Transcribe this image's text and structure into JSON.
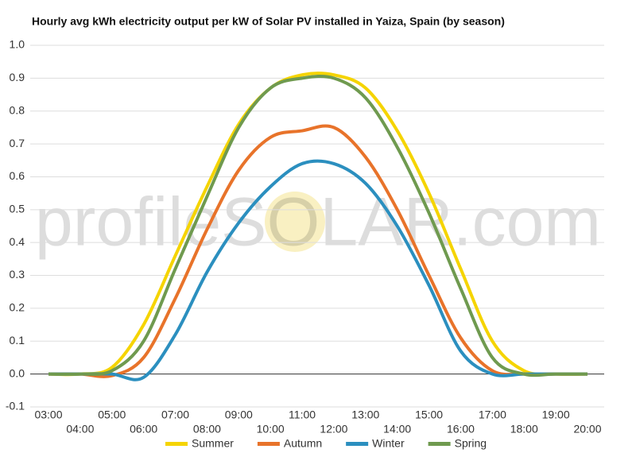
{
  "chart_data": {
    "type": "line",
    "title": "Hourly avg kWh electricity output per kW of Solar PV installed in Yaiza, Spain (by season)",
    "watermark": "profileSOLAR.com",
    "categories": [
      "03:00",
      "04:00",
      "05:00",
      "06:00",
      "07:00",
      "08:00",
      "09:00",
      "10:00",
      "11:00",
      "12:00",
      "13:00",
      "14:00",
      "15:00",
      "16:00",
      "17:00",
      "18:00",
      "19:00",
      "20:00"
    ],
    "series": [
      {
        "name": "Summer",
        "color": "#f5d400",
        "values": [
          0,
          0,
          0.02,
          0.15,
          0.36,
          0.57,
          0.76,
          0.87,
          0.91,
          0.91,
          0.87,
          0.74,
          0.55,
          0.32,
          0.1,
          0.01,
          0,
          0
        ]
      },
      {
        "name": "Autumn",
        "color": "#e8732a",
        "values": [
          0,
          0,
          -0.005,
          0.05,
          0.23,
          0.44,
          0.62,
          0.72,
          0.74,
          0.75,
          0.66,
          0.5,
          0.3,
          0.11,
          0.01,
          0,
          0,
          0
        ]
      },
      {
        "name": "Winter",
        "color": "#2b8fbf",
        "values": [
          0,
          0,
          0,
          -0.01,
          0.12,
          0.31,
          0.46,
          0.57,
          0.64,
          0.64,
          0.58,
          0.45,
          0.27,
          0.07,
          0,
          0,
          0,
          0
        ]
      },
      {
        "name": "Spring",
        "color": "#6f9a4f",
        "values": [
          0,
          0,
          0.01,
          0.1,
          0.32,
          0.54,
          0.75,
          0.87,
          0.9,
          0.9,
          0.84,
          0.69,
          0.49,
          0.26,
          0.05,
          0,
          0,
          0
        ]
      }
    ],
    "ylim": [
      -0.1,
      1.0
    ],
    "yticks": [
      -0.1,
      {
        "value": 0,
        "label": "0.0"
      },
      0.1,
      0.2,
      0.3,
      0.4,
      0.5,
      0.6,
      0.7,
      0.8,
      0.9,
      {
        "value": 1,
        "label": "1.0"
      }
    ],
    "grid": true,
    "legend": "bottom"
  }
}
